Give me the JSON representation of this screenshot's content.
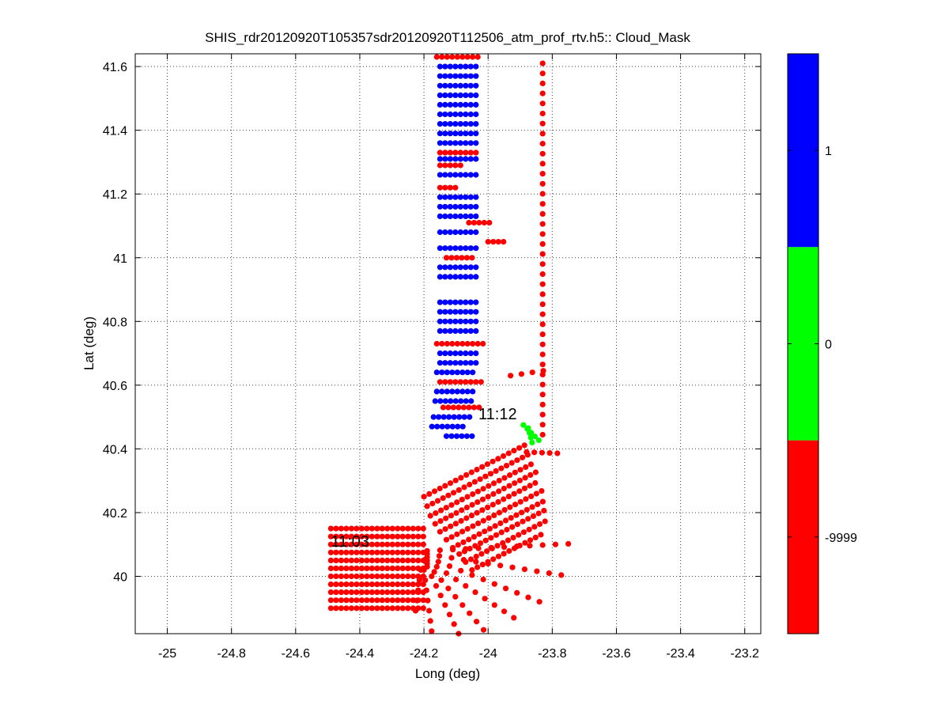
{
  "chart_data": {
    "type": "scatter",
    "title": "SHIS_rdr20120920T105357sdr20120920T112506_atm_prof_rtv.h5:: Cloud_Mask",
    "xlabel": "Long (deg)",
    "ylabel": "Lat (deg)",
    "xlim": [
      -25.1,
      -23.15
    ],
    "ylim": [
      39.82,
      41.64
    ],
    "xticks": [
      -25,
      -24.8,
      -24.6,
      -24.4,
      -24.2,
      -24,
      -23.8,
      -23.6,
      -23.4,
      -23.2
    ],
    "yticks": [
      40,
      40.2,
      40.4,
      40.6,
      40.8,
      41,
      41.2,
      41.4,
      41.6
    ],
    "grid": true,
    "colors": {
      "cloud": "#0000ff",
      "clear": "#00ff00",
      "missing": "#ff0000"
    },
    "colorbar": {
      "segments": [
        {
          "label": "1",
          "color": "#0000ff"
        },
        {
          "label": "0",
          "color": "#00ff00"
        },
        {
          "label": "-9999",
          "color": "#ff0000"
        }
      ]
    },
    "annotations": [
      {
        "text": "11:12",
        "x": -24.03,
        "y": 40.51
      },
      {
        "text": "11:03",
        "x": -24.49,
        "y": 40.11
      }
    ],
    "series": [
      {
        "label": "-9999",
        "color": "#ff0000",
        "rows": [
          {
            "x0": -24.16,
            "y0": 41.63,
            "dx": 0.016,
            "dy": 0,
            "n": 9
          },
          {
            "x0": -23.83,
            "y0": 41.61,
            "dx": 0,
            "dy": -0.0315,
            "n": 38
          },
          {
            "x0": -24.15,
            "y0": 41.33,
            "dx": 0.016,
            "dy": 0,
            "n": 8
          },
          {
            "x0": -24.15,
            "y0": 41.29,
            "dx": 0.016,
            "dy": 0,
            "n": 5
          },
          {
            "x0": -24.15,
            "y0": 41.22,
            "dx": 0.016,
            "dy": 0,
            "n": 4
          },
          {
            "x0": -24.06,
            "y0": 41.11,
            "dx": 0.016,
            "dy": 0,
            "n": 5
          },
          {
            "x0": -24.13,
            "y0": 41.0,
            "dx": 0.016,
            "dy": 0,
            "n": 6
          },
          {
            "x0": -24.0,
            "y0": 41.05,
            "dx": 0.016,
            "dy": 0,
            "n": 4
          },
          {
            "x0": -24.16,
            "y0": 40.73,
            "dx": 0.016,
            "dy": 0,
            "n": 10
          },
          {
            "x0": -24.15,
            "y0": 40.61,
            "dx": 0.016,
            "dy": 0,
            "n": 9
          },
          {
            "x0": -24.14,
            "y0": 40.53,
            "dx": 0.016,
            "dy": 0,
            "n": 8
          },
          {
            "x0": -24.2,
            "y0": 40.25,
            "dx": 0.0165,
            "dy": 0.0085,
            "n": 20
          },
          {
            "x0": -24.19,
            "y0": 40.22,
            "dx": 0.0165,
            "dy": 0.0085,
            "n": 20
          },
          {
            "x0": -24.18,
            "y0": 40.19,
            "dx": 0.0165,
            "dy": 0.0085,
            "n": 20
          },
          {
            "x0": -24.165,
            "y0": 40.165,
            "dx": 0.0165,
            "dy": 0.0085,
            "n": 20
          },
          {
            "x0": -24.15,
            "y0": 40.14,
            "dx": 0.0165,
            "dy": 0.0085,
            "n": 19
          },
          {
            "x0": -24.13,
            "y0": 40.115,
            "dx": 0.0165,
            "dy": 0.0085,
            "n": 19
          },
          {
            "x0": -24.11,
            "y0": 40.09,
            "dx": 0.0165,
            "dy": 0.0085,
            "n": 18
          },
          {
            "x0": -24.09,
            "y0": 40.07,
            "dx": 0.0165,
            "dy": 0.0085,
            "n": 17
          },
          {
            "x0": -24.07,
            "y0": 40.045,
            "dx": 0.0165,
            "dy": 0.0085,
            "n": 16
          },
          {
            "x0": -24.05,
            "y0": 40.02,
            "dx": 0.0165,
            "dy": 0.0085,
            "n": 14
          },
          {
            "x0": -24.49,
            "y0": 40.15,
            "dx": 0.016,
            "dy": 0,
            "n": 19
          },
          {
            "x0": -24.49,
            "y0": 40.125,
            "dx": 0.016,
            "dy": 0,
            "n": 19
          },
          {
            "x0": -24.49,
            "y0": 40.1,
            "dx": 0.016,
            "dy": 0,
            "n": 19
          },
          {
            "x0": -24.49,
            "y0": 40.075,
            "dx": 0.016,
            "dy": 0,
            "n": 19
          },
          {
            "x0": -24.49,
            "y0": 40.05,
            "dx": 0.016,
            "dy": 0,
            "n": 19
          },
          {
            "x0": -24.49,
            "y0": 40.025,
            "dx": 0.016,
            "dy": 0,
            "n": 19
          },
          {
            "x0": -24.49,
            "y0": 40.0,
            "dx": 0.016,
            "dy": 0,
            "n": 19
          },
          {
            "x0": -24.49,
            "y0": 39.975,
            "dx": 0.016,
            "dy": 0,
            "n": 19
          },
          {
            "x0": -24.49,
            "y0": 39.95,
            "dx": 0.016,
            "dy": 0,
            "n": 19
          },
          {
            "x0": -24.49,
            "y0": 39.925,
            "dx": 0.016,
            "dy": 0,
            "n": 19
          },
          {
            "x0": -24.49,
            "y0": 39.9,
            "dx": 0.016,
            "dy": 0,
            "n": 19
          },
          {
            "x0": -24.19,
            "y0": 40.08,
            "dx": 0.04,
            "dy": 0.002,
            "n": 12
          },
          {
            "x0": -24.19,
            "y0": 40.07,
            "dx": 0.038,
            "dy": -0.006,
            "n": 12
          },
          {
            "x0": -24.19,
            "y0": 40.06,
            "dx": 0.035,
            "dy": -0.014,
            "n": 11
          },
          {
            "x0": -24.19,
            "y0": 40.05,
            "dx": 0.03,
            "dy": -0.02,
            "n": 10
          },
          {
            "x0": -24.19,
            "y0": 40.04,
            "dx": 0.022,
            "dy": -0.026,
            "n": 9
          },
          {
            "x0": -24.19,
            "y0": 40.03,
            "dx": 0.014,
            "dy": -0.03,
            "n": 8
          },
          {
            "x0": -24.2,
            "y0": 40.02,
            "dx": 0.004,
            "dy": -0.032,
            "n": 7
          },
          {
            "x0": -24.21,
            "y0": 40.02,
            "dx": -0.004,
            "dy": -0.032,
            "n": 5
          },
          {
            "x0": -23.88,
            "y0": 40.39,
            "dx": 0.024,
            "dy": -0.001,
            "n": 5
          },
          {
            "x0": -23.93,
            "y0": 40.63,
            "dx": 0.034,
            "dy": 0.005,
            "n": 4
          }
        ]
      },
      {
        "label": "1",
        "color": "#0000ff",
        "rows": [
          {
            "x0": -24.15,
            "y0": 41.6,
            "dx": 0.016,
            "dy": 0,
            "n": 8
          },
          {
            "x0": -24.15,
            "y0": 41.57,
            "dx": 0.016,
            "dy": 0,
            "n": 8
          },
          {
            "x0": -24.15,
            "y0": 41.54,
            "dx": 0.016,
            "dy": 0,
            "n": 8
          },
          {
            "x0": -24.15,
            "y0": 41.51,
            "dx": 0.016,
            "dy": 0,
            "n": 8
          },
          {
            "x0": -24.15,
            "y0": 41.48,
            "dx": 0.016,
            "dy": 0,
            "n": 8
          },
          {
            "x0": -24.15,
            "y0": 41.45,
            "dx": 0.016,
            "dy": 0,
            "n": 8
          },
          {
            "x0": -24.15,
            "y0": 41.42,
            "dx": 0.016,
            "dy": 0,
            "n": 8
          },
          {
            "x0": -24.15,
            "y0": 41.39,
            "dx": 0.016,
            "dy": 0,
            "n": 8
          },
          {
            "x0": -24.15,
            "y0": 41.36,
            "dx": 0.016,
            "dy": 0,
            "n": 8
          },
          {
            "x0": -24.15,
            "y0": 41.31,
            "dx": 0.016,
            "dy": 0,
            "n": 8
          },
          {
            "x0": -24.15,
            "y0": 41.26,
            "dx": 0.016,
            "dy": 0,
            "n": 8
          },
          {
            "x0": -24.15,
            "y0": 41.19,
            "dx": 0.016,
            "dy": 0,
            "n": 8
          },
          {
            "x0": -24.15,
            "y0": 41.16,
            "dx": 0.016,
            "dy": 0,
            "n": 8
          },
          {
            "x0": -24.15,
            "y0": 41.13,
            "dx": 0.016,
            "dy": 0,
            "n": 8
          },
          {
            "x0": -24.15,
            "y0": 41.08,
            "dx": 0.016,
            "dy": 0,
            "n": 8
          },
          {
            "x0": -24.15,
            "y0": 41.03,
            "dx": 0.016,
            "dy": 0,
            "n": 8
          },
          {
            "x0": -24.15,
            "y0": 40.97,
            "dx": 0.016,
            "dy": 0,
            "n": 8
          },
          {
            "x0": -24.15,
            "y0": 40.94,
            "dx": 0.016,
            "dy": 0,
            "n": 8
          },
          {
            "x0": -24.15,
            "y0": 40.86,
            "dx": 0.016,
            "dy": 0,
            "n": 8
          },
          {
            "x0": -24.15,
            "y0": 40.83,
            "dx": 0.016,
            "dy": 0,
            "n": 8
          },
          {
            "x0": -24.15,
            "y0": 40.8,
            "dx": 0.016,
            "dy": 0,
            "n": 8
          },
          {
            "x0": -24.15,
            "y0": 40.77,
            "dx": 0.016,
            "dy": 0,
            "n": 8
          },
          {
            "x0": -24.15,
            "y0": 40.7,
            "dx": 0.016,
            "dy": 0,
            "n": 8
          },
          {
            "x0": -24.15,
            "y0": 40.67,
            "dx": 0.016,
            "dy": 0,
            "n": 8
          },
          {
            "x0": -24.16,
            "y0": 40.64,
            "dx": 0.016,
            "dy": 0,
            "n": 8
          },
          {
            "x0": -24.16,
            "y0": 40.58,
            "dx": 0.016,
            "dy": 0,
            "n": 8
          },
          {
            "x0": -24.165,
            "y0": 40.55,
            "dx": 0.016,
            "dy": 0,
            "n": 8
          },
          {
            "x0": -24.17,
            "y0": 40.5,
            "dx": 0.016,
            "dy": 0,
            "n": 8
          },
          {
            "x0": -24.175,
            "y0": 40.47,
            "dx": 0.016,
            "dy": 0,
            "n": 7
          },
          {
            "x0": -24.13,
            "y0": 40.44,
            "dx": 0.016,
            "dy": 0,
            "n": 6
          }
        ]
      },
      {
        "label": "0",
        "color": "#00ff00",
        "rows": [
          {
            "x0": -23.89,
            "y0": 40.475,
            "dx": 0.012,
            "dy": -0.012,
            "n": 5
          },
          {
            "x0": -23.875,
            "y0": 40.465,
            "dx": 0.004,
            "dy": -0.015,
            "n": 4
          }
        ]
      }
    ]
  }
}
